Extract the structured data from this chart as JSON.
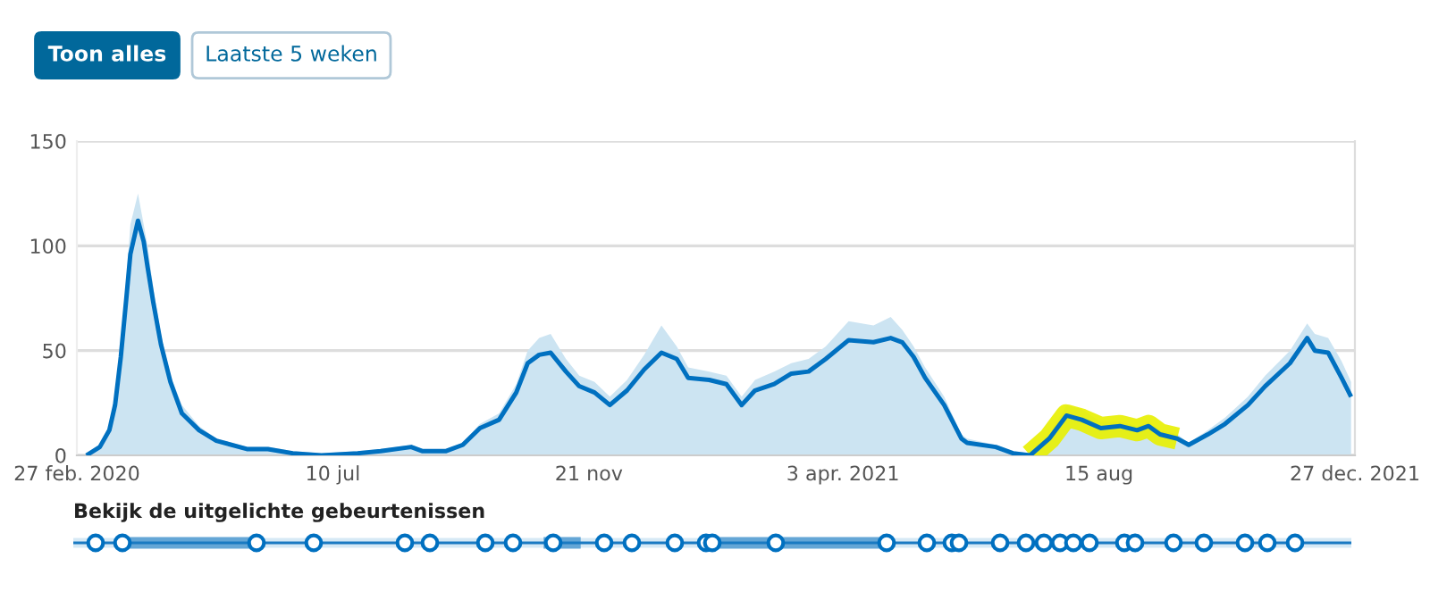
{
  "chart_data": {
    "type": "area",
    "x": [
      "2020-03-03",
      "2020-03-10",
      "2020-03-15",
      "2020-03-18",
      "2020-03-21",
      "2020-03-24",
      "2020-03-26",
      "2020-03-30",
      "2020-04-02",
      "2020-04-04",
      "2020-04-07",
      "2020-04-11",
      "2020-04-16",
      "2020-04-22",
      "2020-05-01",
      "2020-05-10",
      "2020-05-26",
      "2020-06-06",
      "2020-06-19",
      "2020-07-04",
      "2020-07-23",
      "2020-08-04",
      "2020-08-20",
      "2020-08-26",
      "2020-09-07",
      "2020-09-16",
      "2020-09-25",
      "2020-10-05",
      "2020-10-14",
      "2020-10-20",
      "2020-10-26",
      "2020-11-01",
      "2020-11-09",
      "2020-11-16",
      "2020-11-24",
      "2020-12-02",
      "2020-12-11",
      "2020-12-20",
      "2020-12-29",
      "2021-01-06",
      "2021-01-12",
      "2021-01-23",
      "2021-02-01",
      "2021-02-09",
      "2021-02-16",
      "2021-02-26",
      "2021-03-07",
      "2021-03-16",
      "2021-03-25",
      "2021-04-06",
      "2021-04-19",
      "2021-04-28",
      "2021-05-04",
      "2021-05-10",
      "2021-05-16",
      "2021-05-26",
      "2021-06-04",
      "2021-06-07",
      "2021-06-22",
      "2021-07-01",
      "2021-07-10",
      "2021-07-20",
      "2021-07-29",
      "2021-08-06",
      "2021-08-16",
      "2021-08-26",
      "2021-09-04",
      "2021-09-10",
      "2021-09-16",
      "2021-09-25",
      "2021-10-01",
      "2021-10-11",
      "2021-10-20",
      "2021-11-01",
      "2021-11-10",
      "2021-11-23",
      "2021-12-02",
      "2021-12-06",
      "2021-12-13",
      "2021-12-20",
      "2021-12-25"
    ],
    "series": [
      {
        "color": "#cce4f2",
        "values": [
          1,
          5,
          14,
          28,
          55,
          85,
          110,
          125,
          110,
          100,
          80,
          58,
          38,
          24,
          14,
          8,
          4,
          4,
          2,
          1,
          2,
          3,
          5,
          3,
          3,
          6,
          15,
          20,
          34,
          50,
          56,
          58,
          46,
          38,
          35,
          28,
          36,
          48,
          62,
          52,
          42,
          40,
          38,
          28,
          36,
          40,
          44,
          46,
          52,
          64,
          62,
          66,
          60,
          52,
          42,
          28,
          10,
          8,
          5,
          2,
          1,
          10,
          24,
          22,
          16,
          16,
          14,
          16,
          12,
          10,
          6,
          12,
          18,
          28,
          38,
          50,
          63,
          58,
          56,
          45,
          35
        ]
      },
      {
        "type": "line",
        "color": "#e8f000",
        "x": [
          "2021-07-10",
          "2021-07-20",
          "2021-07-29",
          "2021-08-06",
          "2021-08-16",
          "2021-08-26",
          "2021-09-04",
          "2021-09-10",
          "2021-09-16",
          "2021-09-25"
        ],
        "values": [
          0,
          8,
          19,
          17,
          13,
          14,
          12,
          14,
          10,
          8
        ]
      },
      {
        "type": "line",
        "color": "#0070c0",
        "values": [
          0,
          4,
          12,
          24,
          47,
          76,
          96,
          112,
          102,
          90,
          73,
          53,
          35,
          20,
          12,
          7,
          3,
          3,
          1,
          0,
          1,
          2,
          4,
          2,
          2,
          5,
          13,
          17,
          30,
          44,
          48,
          49,
          40,
          33,
          30,
          24,
          31,
          41,
          49,
          46,
          37,
          36,
          34,
          24,
          31,
          34,
          39,
          40,
          46,
          55,
          54,
          56,
          54,
          47,
          37,
          24,
          8,
          6,
          4,
          1,
          0,
          8,
          19,
          17,
          13,
          14,
          12,
          14,
          10,
          8,
          5,
          10,
          15,
          24,
          33,
          44,
          56,
          50,
          49,
          37,
          28
        ]
      }
    ],
    "xlim": [
      "2020-02-27",
      "2021-12-27"
    ],
    "xticks": [
      {
        "value": "2020-02-27",
        "label": "27 feb. 2020"
      },
      {
        "value": "2020-07-10",
        "label": "10 jul"
      },
      {
        "value": "2020-11-21",
        "label": "21 nov"
      },
      {
        "value": "2021-04-03",
        "label": "3 apr. 2021"
      },
      {
        "value": "2021-08-15",
        "label": "15 aug"
      },
      {
        "value": "2021-12-27",
        "label": "27 dec. 2021"
      }
    ],
    "ylim": [
      0,
      150
    ],
    "yticks": [
      0,
      50,
      100,
      150
    ],
    "grid": "y",
    "annotations": [
      "Toon alles",
      "Laatste 5 weken",
      "Bekijk de uitgelichte gebeurtenissen"
    ]
  }
}
